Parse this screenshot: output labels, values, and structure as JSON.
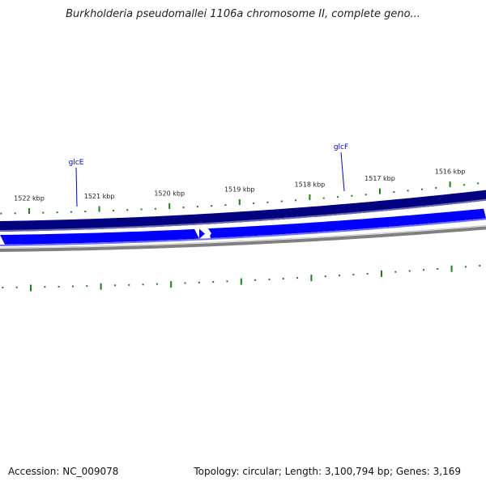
{
  "title": "Burkholderia pseudomallei 1106a chromosome II, complete geno...",
  "footer": {
    "accession": "Accession: NC_009078",
    "summary": "Topology: circular; Length: 3,100,794 bp; Genes: 3,169"
  },
  "scale": {
    "labels": [
      "1522 kbp",
      "1521 kbp",
      "1520 kbp",
      "1519 kbp",
      "1518 kbp",
      "1517 kbp",
      "1516 kbp"
    ],
    "kbp_values": [
      1522,
      1521,
      1520,
      1519,
      1518,
      1517,
      1516
    ]
  },
  "genes": [
    {
      "name": "glcE"
    },
    {
      "name": "glcF"
    }
  ],
  "colors": {
    "forward_track": "#000080",
    "reverse_track": "#0000ff",
    "backbone": "#808080",
    "ticks": "#118811",
    "gene_label": "#0000ee"
  }
}
